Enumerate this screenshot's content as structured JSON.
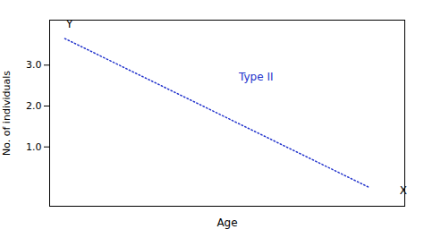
{
  "chart_data": {
    "type": "line",
    "x": [
      0,
      1
    ],
    "values": [
      3.65,
      0.02
    ],
    "color": "#2233cc",
    "line_style": "dotted",
    "xlabel": "Age",
    "ylabel": "No. of individuals",
    "xlim": [
      -0.05,
      1.12
    ],
    "ylim": [
      -0.45,
      4.1
    ],
    "yticks": [
      1,
      2,
      3
    ],
    "tick_labels": "y",
    "grid": false,
    "annotations": [
      {
        "text": "Type II",
        "x": 0.63,
        "y": 2.7,
        "color": "#2233cc"
      },
      {
        "text": "X",
        "x": 1.115,
        "y": -0.06
      },
      {
        "text": "Y",
        "x": 0.015,
        "y": 4.0
      }
    ]
  }
}
